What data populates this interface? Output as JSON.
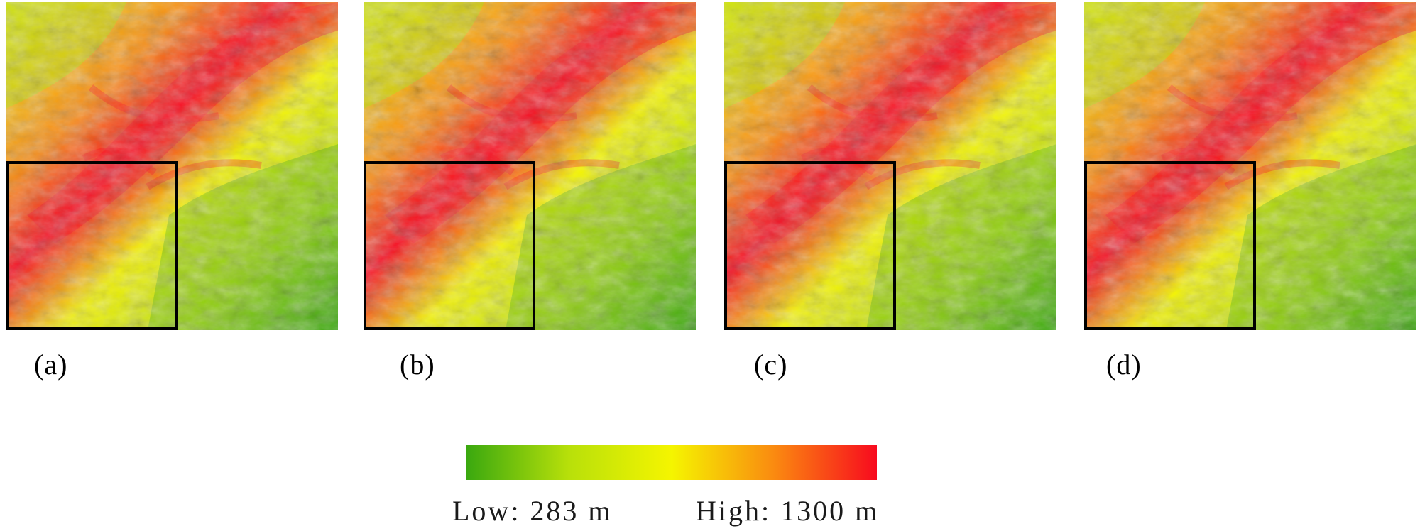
{
  "panels": [
    {
      "id": "a",
      "label": "(a)"
    },
    {
      "id": "b",
      "label": "(b)"
    },
    {
      "id": "c",
      "label": "(c)"
    },
    {
      "id": "d",
      "label": "(d)"
    }
  ],
  "legend": {
    "low_label": "Low: 283 m",
    "high_label": "High: 1300 m",
    "colors": [
      "#3aa80f",
      "#b8e00a",
      "#f5f500",
      "#fa8a10",
      "#f80a1e"
    ]
  },
  "inset_box_color": "#000000"
}
